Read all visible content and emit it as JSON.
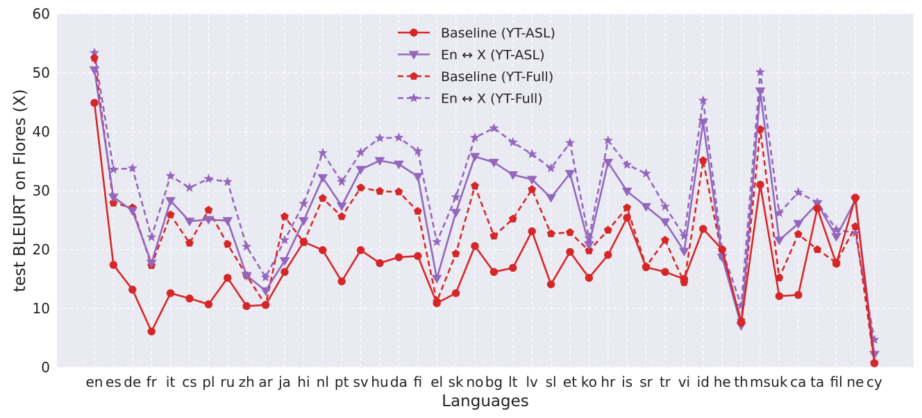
{
  "chart_data": {
    "type": "line",
    "xlabel": "Languages",
    "ylabel": "test BLEURT on Flores (X)",
    "ylim": [
      0,
      60
    ],
    "yticks": [
      0,
      10,
      20,
      30,
      40,
      50,
      60
    ],
    "grid": true,
    "legend_position": "top-center",
    "categories": [
      "en",
      "es",
      "de",
      "fr",
      "it",
      "cs",
      "pl",
      "ru",
      "zh",
      "ar",
      "ja",
      "hi",
      "nl",
      "pt",
      "sv",
      "hu",
      "da",
      "fi",
      "el",
      "sk",
      "no",
      "bg",
      "lt",
      "lv",
      "sl",
      "et",
      "ko",
      "hr",
      "is",
      "sr",
      "tr",
      "vi",
      "id",
      "he",
      "th",
      "ms",
      "uk",
      "ca",
      "ta",
      "fil",
      "ne",
      "cy"
    ],
    "tick_labels": [
      "en",
      "es",
      "de",
      "fr",
      "it",
      "cs",
      "pl",
      "ru",
      "zh",
      "ar",
      "ja",
      "hi",
      "nl",
      "pt",
      "sv",
      "hu",
      "da",
      "fi",
      "el",
      "sk",
      "no",
      "bg",
      "lt",
      "lv",
      "sl",
      "et",
      "ko",
      "hr",
      "is",
      "sr",
      "tr",
      "vi",
      "id",
      "he",
      "th",
      "ms",
      "uk",
      "ca",
      "ta",
      "fil",
      "ne",
      "cy"
    ],
    "series": [
      {
        "name": "Baseline (YT-ASL)",
        "color": "#d62728",
        "dash": "solid",
        "marker": "circle",
        "values": [
          44.9,
          17.4,
          13.2,
          6.1,
          12.6,
          11.7,
          10.7,
          15.2,
          10.4,
          10.6,
          16.2,
          21.3,
          19.9,
          14.6,
          19.9,
          17.7,
          18.7,
          18.9,
          10.9,
          12.6,
          20.6,
          16.2,
          16.9,
          23.1,
          14.1,
          19.6,
          15.2,
          19.1,
          25.4,
          17.0,
          16.2,
          15.0,
          23.5,
          20.0,
          7.6,
          31.0,
          12.1,
          12.3,
          27.0,
          17.6,
          28.8,
          0.7
        ]
      },
      {
        "name": "En ↔ X (YT-ASL)",
        "color": "#9467bd",
        "dash": "solid",
        "marker": "triangle-down",
        "values": [
          50.5,
          28.9,
          26.6,
          17.7,
          28.3,
          24.8,
          25.1,
          24.9,
          15.6,
          13.0,
          18.1,
          24.9,
          32.2,
          27.4,
          33.6,
          35.1,
          34.5,
          32.4,
          15.1,
          26.3,
          35.8,
          34.8,
          32.7,
          31.9,
          28.8,
          32.9,
          20.8,
          34.8,
          29.9,
          27.3,
          24.7,
          19.7,
          41.6,
          18.7,
          7.1,
          46.9,
          21.6,
          24.4,
          27.8,
          22.2,
          28.4,
          2.2
        ]
      },
      {
        "name": "Baseline (YT-Full)",
        "color": "#d62728",
        "dash": "dashed",
        "marker": "pentagon",
        "values": [
          52.5,
          27.9,
          27.1,
          17.3,
          25.9,
          21.1,
          26.7,
          20.9,
          15.6,
          10.6,
          25.6,
          21.2,
          28.7,
          25.6,
          30.5,
          29.9,
          29.8,
          26.5,
          11.2,
          19.3,
          30.8,
          22.3,
          25.2,
          30.2,
          22.7,
          22.9,
          19.8,
          23.3,
          27.1,
          17.1,
          21.6,
          14.4,
          35.1,
          18.9,
          7.9,
          40.4,
          15.2,
          22.6,
          20.0,
          17.8,
          23.9,
          0.8
        ]
      },
      {
        "name": "En ↔ X (YT-Full)",
        "color": "#9467bd",
        "dash": "dashed",
        "marker": "star",
        "values": [
          53.4,
          33.6,
          33.8,
          22.1,
          32.5,
          30.5,
          32.0,
          31.5,
          20.5,
          15.3,
          21.6,
          27.8,
          36.4,
          31.5,
          36.5,
          38.9,
          39.0,
          36.7,
          21.3,
          28.9,
          39.0,
          40.6,
          38.2,
          36.2,
          33.8,
          38.1,
          21.9,
          38.5,
          34.4,
          32.9,
          27.3,
          22.3,
          45.3,
          19.9,
          10.5,
          50.1,
          26.2,
          29.7,
          28.0,
          23.4,
          22.8,
          4.7
        ]
      }
    ]
  }
}
